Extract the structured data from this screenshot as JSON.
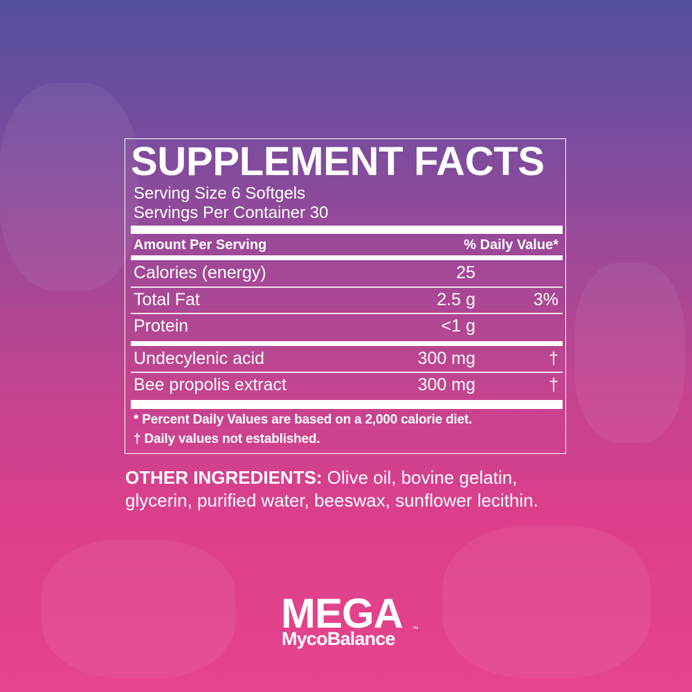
{
  "panel": {
    "title": "SUPPLEMENT FACTS",
    "serving_size": "Serving Size 6 Softgels",
    "servings_per_container": "Servings Per Container 30",
    "header_left": "Amount Per Serving",
    "header_right": "% Daily Value*",
    "rows": [
      {
        "name": "Calories (energy)",
        "amount": "25",
        "dv": ""
      },
      {
        "name": "Total Fat",
        "amount": "2.5 g",
        "dv": "3%"
      },
      {
        "name": "Protein",
        "amount": "<1 g",
        "dv": ""
      },
      {
        "name": "Undecylenic acid",
        "amount": "300 mg",
        "dv": "†"
      },
      {
        "name": "Bee propolis extract",
        "amount": "300 mg",
        "dv": "†"
      }
    ],
    "footnote_1": "*  Percent Daily Values are based on a 2,000 calorie diet.",
    "footnote_2": "† Daily values not established."
  },
  "other_ingredients": {
    "label": "OTHER INGREDIENTS:",
    "text": " Olive oil, bovine gelatin, glycerin, purified water, beeswax, sunflower lecithin."
  },
  "logo": {
    "line1": "MEGA",
    "line2": "MycoBalance",
    "tm": "™"
  },
  "colors": {
    "gradient_top": "#54519d",
    "gradient_bottom": "#e6448e",
    "text": "#ffffff"
  }
}
